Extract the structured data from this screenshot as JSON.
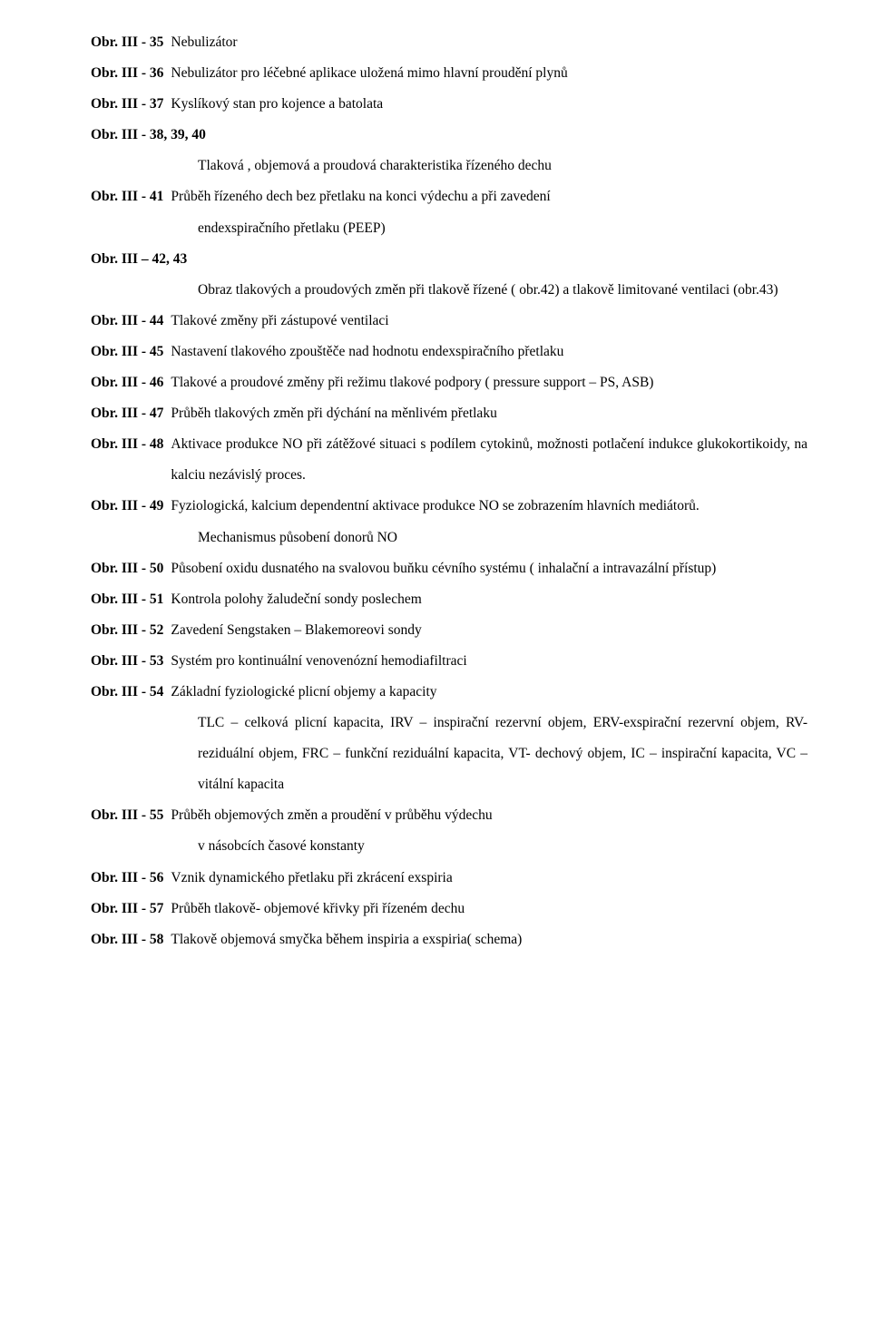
{
  "entries": [
    {
      "label": "Obr. III - 35",
      "desc": "Nebulizátor",
      "indent": []
    },
    {
      "label": "Obr. III - 36",
      "desc": "Nebulizátor  pro léčebné aplikace uložená mimo hlavní proudění plynů",
      "indent": []
    },
    {
      "label": "Obr. III - 37",
      "desc": "Kyslíkový stan pro  kojence a batolata",
      "indent": []
    },
    {
      "label": "Obr. III - 38, 39, 40",
      "desc": "",
      "indent": [
        "Tlaková , objemová a  proudová charakteristika řízeného dechu"
      ]
    },
    {
      "label": "Obr. III - 41",
      "desc": "Průběh řízeného dech  bez přetlaku na konci výdechu a při zavedení",
      "indent": [
        "endexspiračního přetlaku (PEEP)"
      ]
    },
    {
      "label": "Obr. III – 42, 43",
      "desc": "",
      "indent": [
        "Obraz tlakových a proudových změn při tlakově řízené ( obr.42) a tlakově limitované ventilaci (obr.43)"
      ]
    },
    {
      "label": "Obr. III - 44",
      "desc": "Tlakové změny  při zástupové ventilaci",
      "indent": []
    },
    {
      "label": "Obr. III - 45",
      "desc": "Nastavení  tlakového zpouštěče  nad hodnotu  endexspiračního přetlaku",
      "indent": []
    },
    {
      "label": "Obr. III - 46",
      "desc": "Tlakové a proudové změny při režimu tlakové podpory ( pressure support – PS, ASB)",
      "indent": []
    },
    {
      "label": "Obr. III - 47",
      "desc": "Průběh tlakových změn při dýchání na měnlivém přetlaku",
      "indent": []
    },
    {
      "label": "Obr. III - 48",
      "desc": "Aktivace produkce NO při zátěžové situaci  s podílem cytokinů, možnosti potlačení indukce glukokortikoidy,  na kalciu nezávislý proces.",
      "indent": []
    },
    {
      "label": "Obr. III - 49",
      "desc": "Fyziologická, kalcium dependentní  aktivace  produkce NO se zobrazením hlavních mediátorů.",
      "indent": [
        "Mechanismus působení donorů NO"
      ]
    },
    {
      "label": "Obr. III - 50",
      "desc": "Působení  oxidu dusnatého  na svalovou buňku cévního systému ( inhalační a intravazální přístup)",
      "indent": []
    },
    {
      "label": "Obr. III - 51",
      "desc": "Kontrola  polohy žaludeční sondy poslechem",
      "indent": []
    },
    {
      "label": "Obr. III - 52",
      "desc": "Zavedení Sengstaken – Blakemoreovi sondy",
      "indent": []
    },
    {
      "label": "Obr. III - 53",
      "desc": "Systém  pro kontinuální venovenózní hemodiafiltraci",
      "indent": []
    },
    {
      "label": "Obr. III - 54",
      "desc": "Základní fyziologické plicní objemy a  kapacity",
      "indent": [
        "TLC – celková plicní kapacita, IRV – inspirační rezervní objem, ERV-exspirační rezervní objem, RV- reziduální objem, FRC – funkční reziduální kapacita, VT- dechový objem, IC – inspirační kapacita, VC – vitální kapacita"
      ]
    },
    {
      "label": "Obr. III - 55",
      "desc": "Průběh  objemových změn  a  proudění v průběhu  výdechu",
      "indent": [
        "v násobcích časové konstanty"
      ]
    },
    {
      "label": "Obr. III - 56",
      "desc": "Vznik dynamického přetlaku  při zkrácení exspiria",
      "indent": []
    },
    {
      "label": "Obr. III - 57",
      "desc": "Průběh tlakově- objemové křivky při řízeném dechu",
      "indent": []
    },
    {
      "label": "Obr. III - 58",
      "desc": "Tlakově objemová  smyčka během inspiria a exspiria( schema)",
      "indent": []
    }
  ]
}
